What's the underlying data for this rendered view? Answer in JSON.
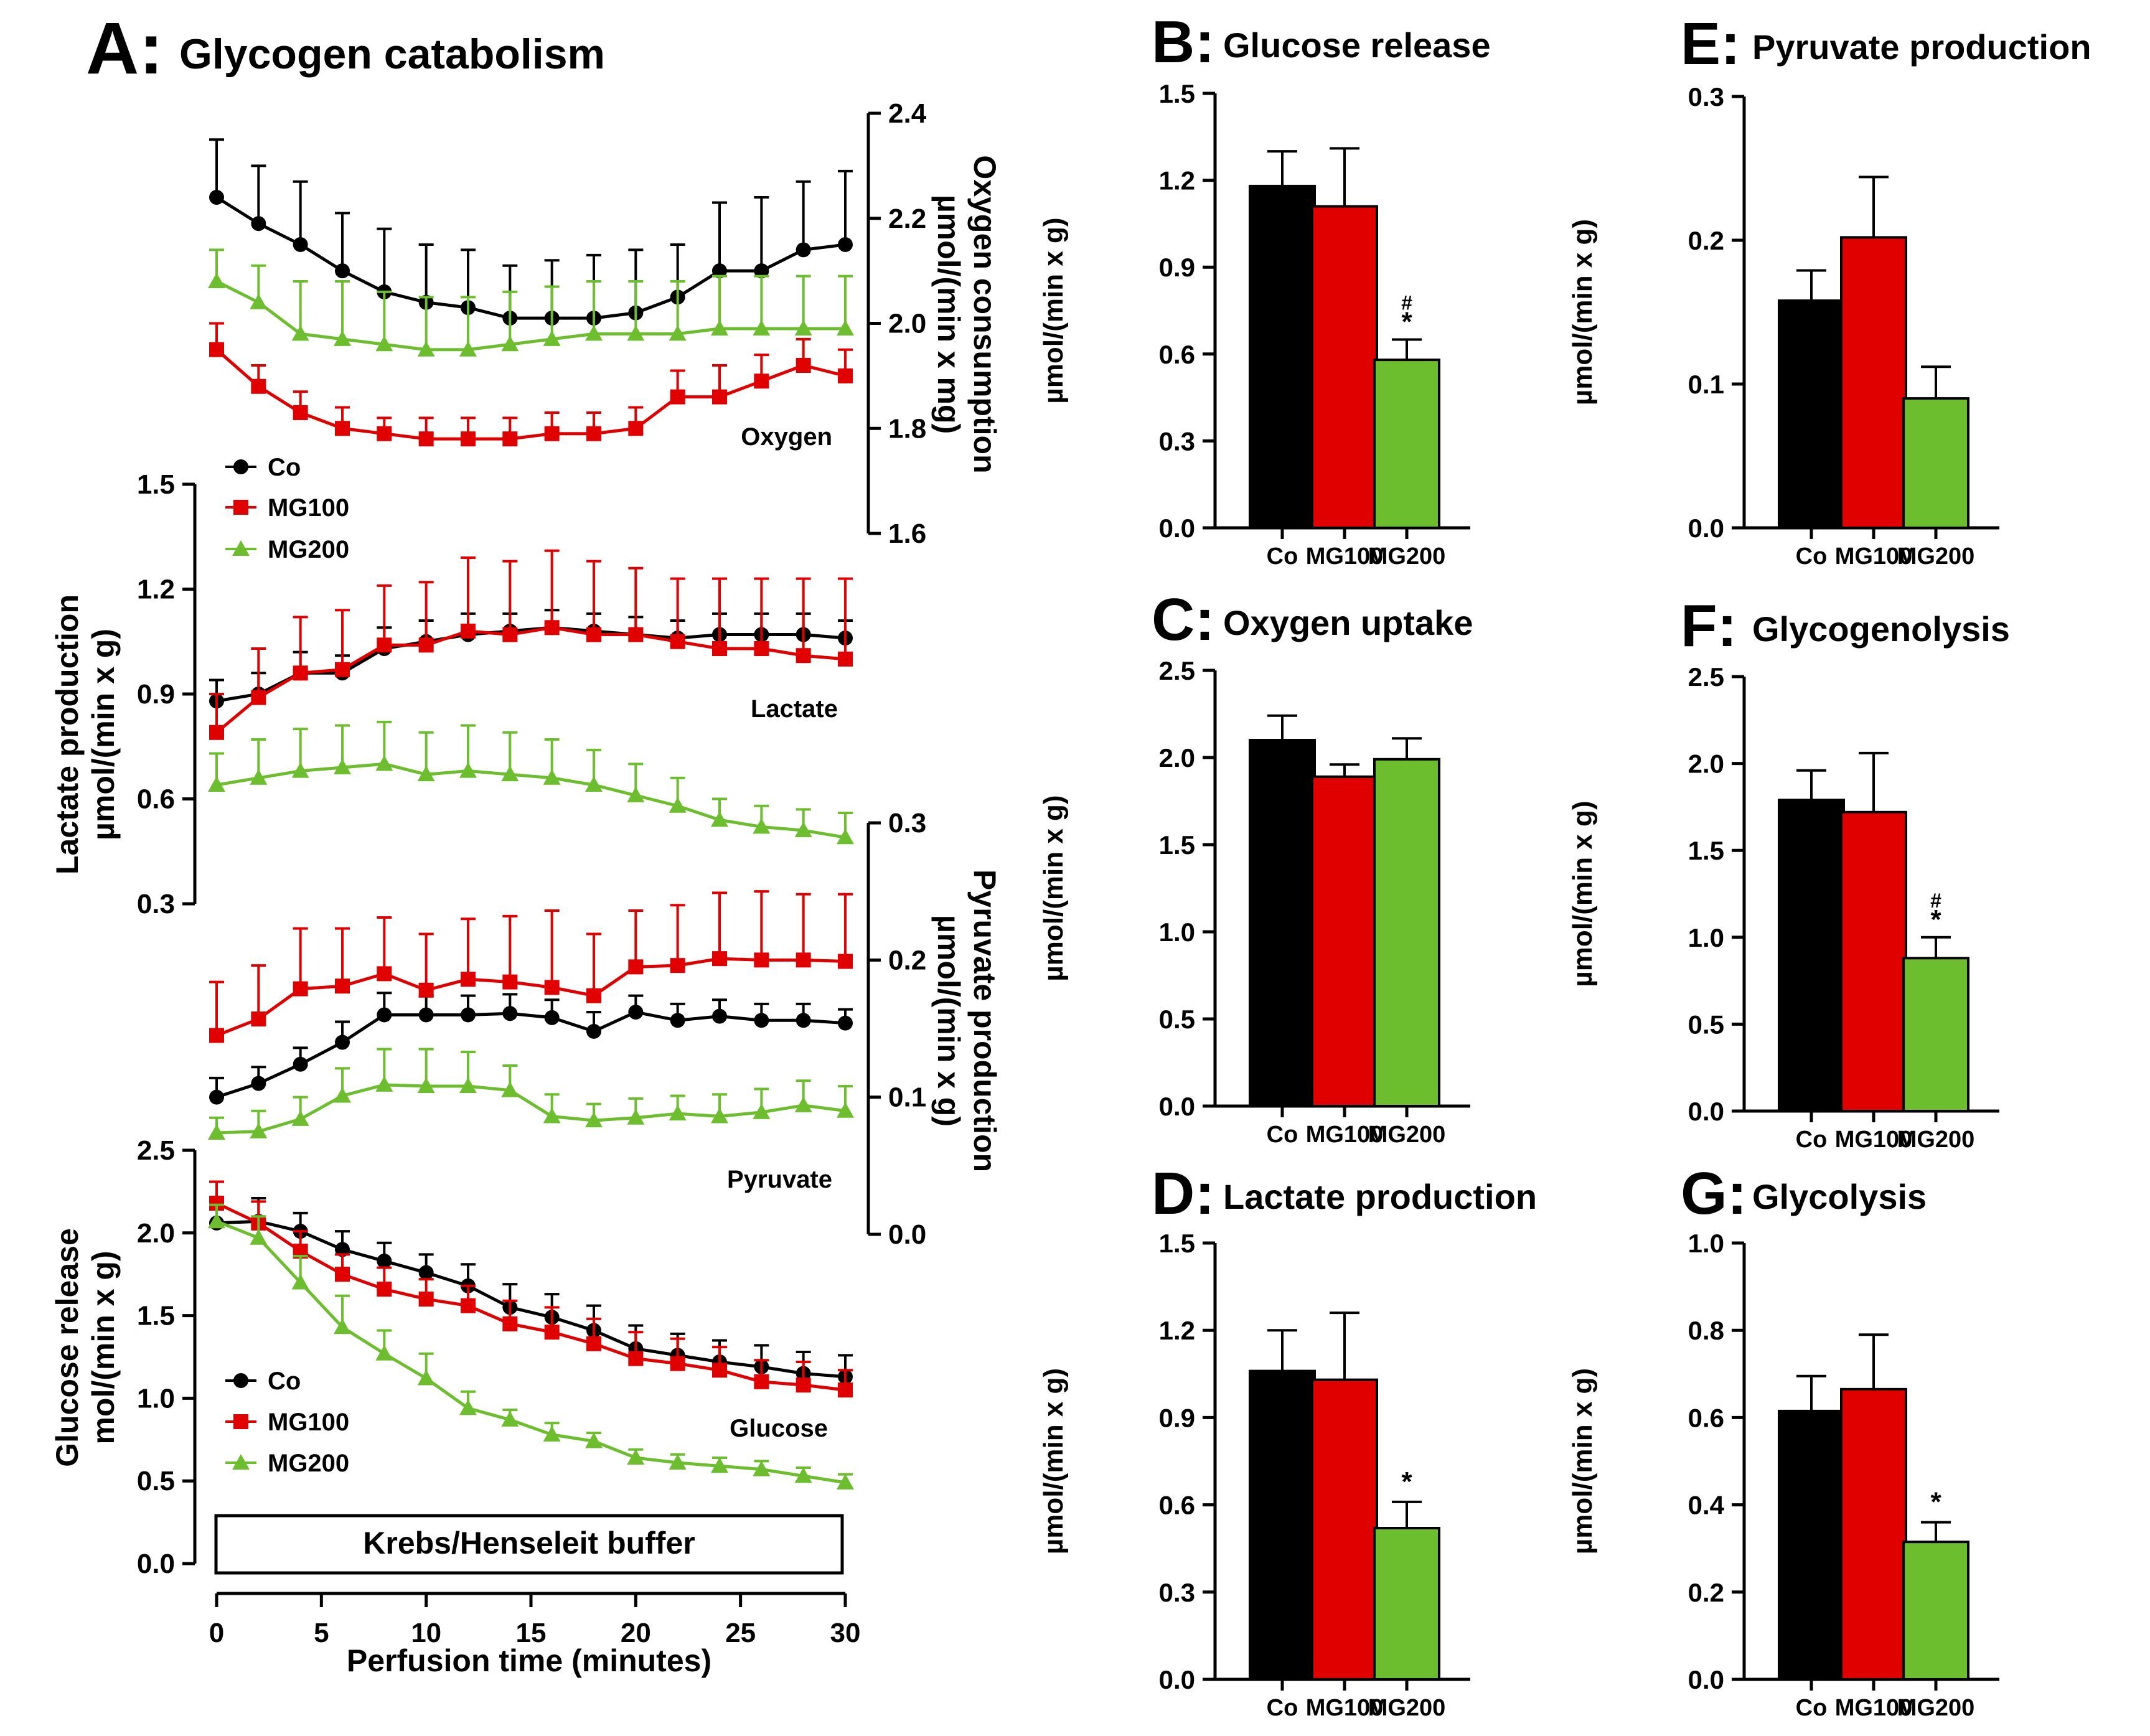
{
  "colors": {
    "Co": "#000000",
    "MG100": "#e00000",
    "MG200": "#6dbe2e"
  },
  "panelA": {
    "letter": "A:",
    "title": "Glycogen catabolism",
    "xlabel": "Perfusion time (minutes)",
    "xticks": [
      "0",
      "5",
      "10",
      "15",
      "20",
      "25",
      "30"
    ],
    "buffer_label": "Krebs/Henseleit buffer",
    "legend_top": [
      "Co",
      "MG100",
      "MG200"
    ],
    "legend_bottom": [
      "Co",
      "MG100",
      "MG200"
    ],
    "oxygen": {
      "ylabel": "Oxygen consumption",
      "unit": "µmol/(min x mg)",
      "curve_label": "Oxygen",
      "ticks": [
        "2.4",
        "2.2",
        "2.0",
        "1.8",
        "1.6"
      ]
    },
    "lactate": {
      "ylabel": "Lactate production",
      "unit": "µmol/(min x g)",
      "curve_label": "Lactate",
      "ticks": [
        "1.5",
        "1.2",
        "0.9",
        "0.6",
        "0.3"
      ]
    },
    "pyruvate": {
      "ylabel": "Pyruvate production",
      "unit": "µmol/(min x g)",
      "curve_label": "Pyruvate",
      "ticks": [
        "0.3",
        "0.2",
        "0.1",
        "0.0"
      ]
    },
    "glucose": {
      "ylabel": "Glucose release",
      "unit": "mol/(min x g)",
      "curve_label": "Glucose",
      "ticks": [
        "2.5",
        "2.0",
        "1.5",
        "1.0",
        "0.5",
        "0.0"
      ]
    }
  },
  "bar_ylabel": "µmol/(min x g)",
  "categories": [
    "Co",
    "MG100",
    "MG200"
  ],
  "panels": {
    "B": {
      "letter": "B:",
      "title": "Glucose release",
      "ticks": [
        "1.5",
        "1.2",
        "0.9",
        "0.6",
        "0.3",
        "0.0"
      ],
      "marks": [
        "",
        "",
        "#\n*"
      ]
    },
    "C": {
      "letter": "C:",
      "title": "Oxygen uptake",
      "ticks": [
        "2.5",
        "2.0",
        "1.5",
        "1.0",
        "0.5",
        "0.0"
      ],
      "marks": [
        "",
        "",
        ""
      ]
    },
    "D": {
      "letter": "D:",
      "title": "Lactate production",
      "ticks": [
        "1.5",
        "1.2",
        "0.9",
        "0.6",
        "0.3",
        "0.0"
      ],
      "marks": [
        "",
        "",
        "*"
      ]
    },
    "E": {
      "letter": "E:",
      "title": "Pyruvate production",
      "ticks": [
        "0.3",
        "0.2",
        "0.1",
        "0.0"
      ],
      "marks": [
        "",
        "",
        ""
      ]
    },
    "F": {
      "letter": "F:",
      "title": "Glycogenolysis",
      "ticks": [
        "2.5",
        "2.0",
        "1.5",
        "1.0",
        "0.5",
        "0.0"
      ],
      "marks": [
        "",
        "",
        "#\n*"
      ]
    },
    "G": {
      "letter": "G:",
      "title": "Glycolysis",
      "ticks": [
        "1.0",
        "0.8",
        "0.6",
        "0.4",
        "0.2",
        "0.0"
      ],
      "marks": [
        "",
        "",
        "*"
      ]
    }
  },
  "chart_data": [
    {
      "type": "line",
      "panel": "A",
      "name": "Oxygen",
      "title": "Glycogen catabolism",
      "xlabel": "Perfusion time (minutes)",
      "ylabel": "Oxygen consumption µmol/(min x mg)",
      "x": [
        0,
        2,
        4,
        6,
        8,
        10,
        12,
        14,
        16,
        18,
        20,
        22,
        24,
        26,
        28,
        30
      ],
      "xlim": [
        0,
        30
      ],
      "ylim": [
        1.6,
        2.4
      ],
      "series": [
        {
          "name": "Co",
          "values": [
            2.24,
            2.19,
            2.15,
            2.1,
            2.06,
            2.04,
            2.03,
            2.01,
            2.01,
            2.01,
            2.02,
            2.05,
            2.1,
            2.1,
            2.14,
            2.15
          ],
          "errors": [
            0.11,
            0.11,
            0.12,
            0.11,
            0.12,
            0.11,
            0.11,
            0.1,
            0.11,
            0.12,
            0.12,
            0.1,
            0.13,
            0.14,
            0.13,
            0.14
          ]
        },
        {
          "name": "MG100",
          "values": [
            1.95,
            1.88,
            1.83,
            1.8,
            1.79,
            1.78,
            1.78,
            1.78,
            1.79,
            1.79,
            1.8,
            1.86,
            1.86,
            1.89,
            1.92,
            1.9
          ],
          "errors": [
            0.05,
            0.04,
            0.04,
            0.04,
            0.03,
            0.04,
            0.04,
            0.04,
            0.04,
            0.04,
            0.04,
            0.05,
            0.06,
            0.05,
            0.05,
            0.05
          ]
        },
        {
          "name": "MG200",
          "values": [
            2.08,
            2.04,
            1.98,
            1.97,
            1.96,
            1.95,
            1.95,
            1.96,
            1.97,
            1.98,
            1.98,
            1.98,
            1.99,
            1.99,
            1.99,
            1.99
          ],
          "errors": [
            0.06,
            0.07,
            0.1,
            0.11,
            0.1,
            0.1,
            0.1,
            0.1,
            0.1,
            0.1,
            0.1,
            0.1,
            0.1,
            0.1,
            0.1,
            0.1
          ]
        }
      ]
    },
    {
      "type": "line",
      "panel": "A",
      "name": "Lactate",
      "xlabel": "Perfusion time (minutes)",
      "ylabel": "Lactate production µmol/(min x g)",
      "x": [
        0,
        2,
        4,
        6,
        8,
        10,
        12,
        14,
        16,
        18,
        20,
        22,
        24,
        26,
        28,
        30
      ],
      "xlim": [
        0,
        30
      ],
      "ylim": [
        0.3,
        1.5
      ],
      "series": [
        {
          "name": "Co",
          "values": [
            0.88,
            0.9,
            0.96,
            0.96,
            1.03,
            1.05,
            1.07,
            1.08,
            1.09,
            1.08,
            1.07,
            1.06,
            1.07,
            1.07,
            1.07,
            1.06
          ],
          "errors": [
            0.06,
            0.06,
            0.06,
            0.05,
            0.06,
            0.06,
            0.06,
            0.05,
            0.05,
            0.05,
            0.05,
            0.05,
            0.06,
            0.06,
            0.06,
            0.05
          ]
        },
        {
          "name": "MG100",
          "values": [
            0.79,
            0.89,
            0.96,
            0.97,
            1.04,
            1.04,
            1.08,
            1.07,
            1.09,
            1.07,
            1.07,
            1.05,
            1.03,
            1.03,
            1.01,
            1.0
          ],
          "errors": [
            0.11,
            0.14,
            0.16,
            0.17,
            0.17,
            0.18,
            0.21,
            0.21,
            0.22,
            0.21,
            0.19,
            0.18,
            0.2,
            0.2,
            0.22,
            0.23
          ]
        },
        {
          "name": "MG200",
          "values": [
            0.64,
            0.66,
            0.68,
            0.69,
            0.7,
            0.67,
            0.68,
            0.67,
            0.66,
            0.64,
            0.61,
            0.58,
            0.54,
            0.52,
            0.51,
            0.49
          ],
          "errors": [
            0.09,
            0.11,
            0.12,
            0.12,
            0.12,
            0.12,
            0.13,
            0.12,
            0.11,
            0.1,
            0.09,
            0.08,
            0.06,
            0.06,
            0.06,
            0.07
          ]
        }
      ]
    },
    {
      "type": "line",
      "panel": "A",
      "name": "Pyruvate",
      "xlabel": "Perfusion time (minutes)",
      "ylabel": "Pyruvate production µmol/(min x g)",
      "x": [
        0,
        2,
        4,
        6,
        8,
        10,
        12,
        14,
        16,
        18,
        20,
        22,
        24,
        26,
        28,
        30
      ],
      "xlim": [
        0,
        30
      ],
      "ylim": [
        0.0,
        0.3
      ],
      "series": [
        {
          "name": "Co",
          "values": [
            0.1,
            0.11,
            0.124,
            0.14,
            0.16,
            0.16,
            0.16,
            0.161,
            0.158,
            0.148,
            0.162,
            0.156,
            0.159,
            0.156,
            0.156,
            0.154
          ],
          "errors": [
            0.014,
            0.012,
            0.012,
            0.015,
            0.016,
            0.014,
            0.014,
            0.014,
            0.013,
            0.014,
            0.012,
            0.012,
            0.012,
            0.012,
            0.012,
            0.01
          ]
        },
        {
          "name": "MG100",
          "values": [
            0.145,
            0.157,
            0.179,
            0.181,
            0.19,
            0.178,
            0.186,
            0.184,
            0.18,
            0.174,
            0.195,
            0.196,
            0.201,
            0.2,
            0.2,
            0.199
          ],
          "errors": [
            0.039,
            0.039,
            0.044,
            0.042,
            0.041,
            0.041,
            0.044,
            0.048,
            0.056,
            0.045,
            0.041,
            0.044,
            0.048,
            0.05,
            0.048,
            0.049
          ]
        },
        {
          "name": "MG200",
          "values": [
            0.074,
            0.075,
            0.084,
            0.101,
            0.109,
            0.108,
            0.108,
            0.105,
            0.086,
            0.083,
            0.085,
            0.088,
            0.086,
            0.089,
            0.094,
            0.09
          ],
          "errors": [
            0.011,
            0.015,
            0.016,
            0.02,
            0.026,
            0.027,
            0.025,
            0.018,
            0.016,
            0.012,
            0.014,
            0.013,
            0.016,
            0.017,
            0.018,
            0.018
          ]
        }
      ]
    },
    {
      "type": "line",
      "panel": "A",
      "name": "Glucose",
      "xlabel": "Perfusion time (minutes)",
      "ylabel": "Glucose release mol/(min x g)",
      "x": [
        0,
        2,
        4,
        6,
        8,
        10,
        12,
        14,
        16,
        18,
        20,
        22,
        24,
        26,
        28,
        30
      ],
      "xlim": [
        0,
        30
      ],
      "ylim": [
        0.0,
        2.5
      ],
      "series": [
        {
          "name": "Co",
          "values": [
            2.06,
            2.07,
            2.01,
            1.9,
            1.83,
            1.76,
            1.68,
            1.55,
            1.49,
            1.41,
            1.3,
            1.26,
            1.22,
            1.19,
            1.15,
            1.13
          ],
          "errors": [
            0.14,
            0.14,
            0.11,
            0.11,
            0.11,
            0.11,
            0.13,
            0.14,
            0.14,
            0.15,
            0.14,
            0.13,
            0.13,
            0.13,
            0.13,
            0.13
          ]
        },
        {
          "name": "MG100",
          "values": [
            2.18,
            2.06,
            1.89,
            1.75,
            1.66,
            1.6,
            1.56,
            1.45,
            1.4,
            1.33,
            1.24,
            1.21,
            1.17,
            1.1,
            1.08,
            1.05
          ],
          "errors": [
            0.13,
            0.13,
            0.12,
            0.12,
            0.13,
            0.12,
            0.12,
            0.14,
            0.15,
            0.15,
            0.16,
            0.15,
            0.14,
            0.13,
            0.14,
            0.12
          ]
        },
        {
          "name": "MG200",
          "values": [
            2.07,
            1.97,
            1.7,
            1.43,
            1.27,
            1.12,
            0.94,
            0.87,
            0.78,
            0.74,
            0.64,
            0.61,
            0.59,
            0.57,
            0.53,
            0.49
          ],
          "errors": [
            0.1,
            0.13,
            0.16,
            0.19,
            0.14,
            0.15,
            0.1,
            0.06,
            0.07,
            0.05,
            0.05,
            0.05,
            0.05,
            0.05,
            0.05,
            0.05
          ]
        }
      ]
    },
    {
      "type": "bar",
      "panel": "B",
      "title": "Glucose release",
      "ylabel": "µmol/(min x g)",
      "categories": [
        "Co",
        "MG100",
        "MG200"
      ],
      "values": [
        1.18,
        1.11,
        0.58
      ],
      "errors": [
        0.12,
        0.2,
        0.07
      ],
      "ylim": [
        0,
        1.5
      ]
    },
    {
      "type": "bar",
      "panel": "C",
      "title": "Oxygen uptake",
      "ylabel": "µmol/(min x g)",
      "categories": [
        "Co",
        "MG100",
        "MG200"
      ],
      "values": [
        2.1,
        1.89,
        1.99
      ],
      "errors": [
        0.14,
        0.07,
        0.12
      ],
      "ylim": [
        0,
        2.5
      ]
    },
    {
      "type": "bar",
      "panel": "D",
      "title": "Lactate production",
      "ylabel": "µmol/(min x g)",
      "categories": [
        "Co",
        "MG100",
        "MG200"
      ],
      "values": [
        1.06,
        1.03,
        0.52
      ],
      "errors": [
        0.14,
        0.23,
        0.09
      ],
      "ylim": [
        0,
        1.5
      ]
    },
    {
      "type": "bar",
      "panel": "E",
      "title": "Pyruvate production",
      "ylabel": "µmol/(min x g)",
      "categories": [
        "Co",
        "MG100",
        "MG200"
      ],
      "values": [
        0.158,
        0.202,
        0.09
      ],
      "errors": [
        0.021,
        0.042,
        0.022
      ],
      "ylim": [
        0,
        0.3
      ]
    },
    {
      "type": "bar",
      "panel": "F",
      "title": "Glycogenolysis",
      "ylabel": "µmol/(min x g)",
      "categories": [
        "Co",
        "MG100",
        "MG200"
      ],
      "values": [
        1.79,
        1.72,
        0.88
      ],
      "errors": [
        0.17,
        0.34,
        0.12
      ],
      "ylim": [
        0,
        2.5
      ]
    },
    {
      "type": "bar",
      "panel": "G",
      "title": "Glycolysis",
      "ylabel": "µmol/(min x g)",
      "categories": [
        "Co",
        "MG100",
        "MG200"
      ],
      "values": [
        0.615,
        0.665,
        0.315
      ],
      "errors": [
        0.08,
        0.125,
        0.045
      ],
      "ylim": [
        0,
        1.0
      ]
    }
  ]
}
